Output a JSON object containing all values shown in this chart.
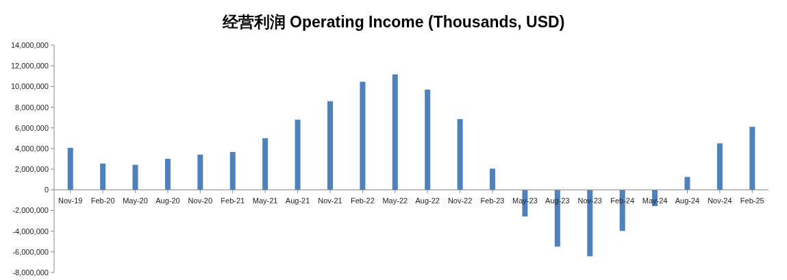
{
  "chart_data": {
    "type": "bar",
    "title": "经营利润 Operating Income (Thousands, USD)",
    "categories": [
      "Nov-19",
      "Feb-20",
      "May-20",
      "Aug-20",
      "Nov-20",
      "Feb-21",
      "May-21",
      "Aug-21",
      "Nov-21",
      "Feb-22",
      "May-22",
      "Aug-22",
      "Nov-22",
      "Feb-23",
      "May-23",
      "Aug-23",
      "Nov-23",
      "Feb-24",
      "May-24",
      "Aug-24",
      "Nov-24",
      "Feb-25"
    ],
    "values": [
      4070000,
      2540000,
      2420000,
      3000000,
      3410000,
      3660000,
      4990000,
      6790000,
      8580000,
      10460000,
      11170000,
      9700000,
      6850000,
      2050000,
      -2580000,
      -5500000,
      -6430000,
      -3980000,
      -1580000,
      1250000,
      4500000,
      6100000
    ],
    "color": "#4f81bd",
    "ylim": [
      -8000000,
      14000000
    ],
    "yticks": [
      {
        "value": -8000000,
        "label": "-8,000,000"
      },
      {
        "value": -6000000,
        "label": "-6,000,000"
      },
      {
        "value": -4000000,
        "label": "-4,000,000"
      },
      {
        "value": -2000000,
        "label": "-2,000,000"
      },
      {
        "value": 0,
        "label": "0"
      },
      {
        "value": 2000000,
        "label": "2,000,000"
      },
      {
        "value": 4000000,
        "label": "4,000,000"
      },
      {
        "value": 6000000,
        "label": "6,000,000"
      },
      {
        "value": 8000000,
        "label": "8,000,000"
      },
      {
        "value": 10000000,
        "label": "10,000,000"
      },
      {
        "value": 12000000,
        "label": "12,000,000"
      },
      {
        "value": 14000000,
        "label": "14,000,000"
      }
    ]
  }
}
